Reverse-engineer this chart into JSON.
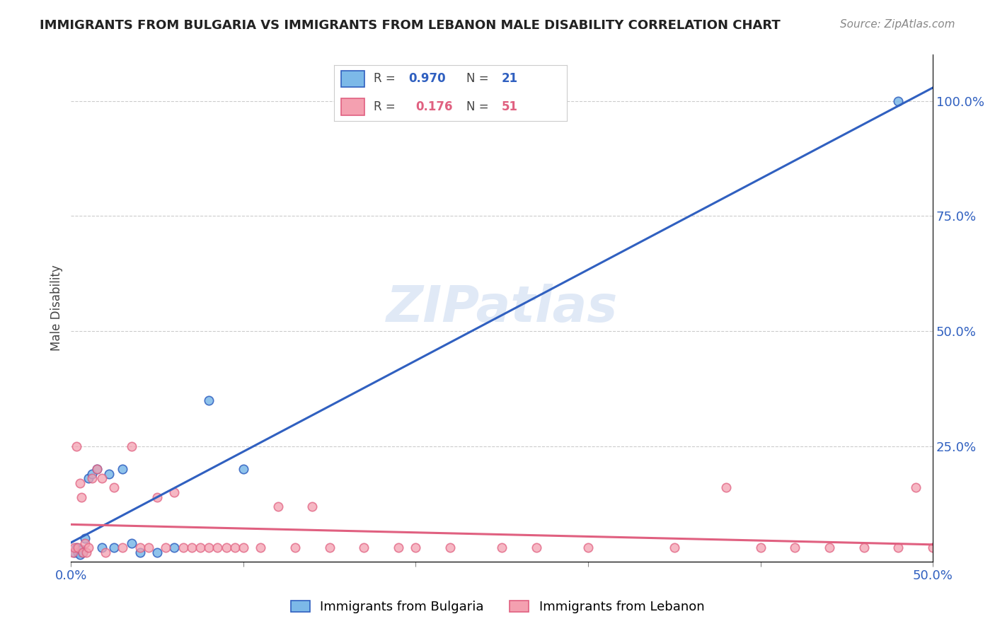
{
  "title": "IMMIGRANTS FROM BULGARIA VS IMMIGRANTS FROM LEBANON MALE DISABILITY CORRELATION CHART",
  "source": "Source: ZipAtlas.com",
  "ylabel": "Male Disability",
  "xlim": [
    0.0,
    0.5
  ],
  "ylim": [
    0.0,
    1.1
  ],
  "xtick_positions": [
    0.0,
    0.1,
    0.2,
    0.3,
    0.4,
    0.5
  ],
  "xticklabels": [
    "0.0%",
    "",
    "",
    "",
    "",
    "50.0%"
  ],
  "ytick_positions": [
    0.0,
    0.25,
    0.5,
    0.75,
    1.0
  ],
  "yticklabels_right": [
    "",
    "25.0%",
    "50.0%",
    "75.0%",
    "100.0%"
  ],
  "bulgaria_R": 0.97,
  "bulgaria_N": 21,
  "lebanon_R": 0.176,
  "lebanon_N": 51,
  "bulgaria_color": "#7cb9e8",
  "lebanon_color": "#f4a0b0",
  "bulgaria_line_color": "#3060c0",
  "lebanon_line_color": "#e06080",
  "watermark": "ZIPatlas",
  "bulgaria_x": [
    0.002,
    0.003,
    0.004,
    0.005,
    0.006,
    0.007,
    0.008,
    0.01,
    0.012,
    0.015,
    0.018,
    0.022,
    0.025,
    0.03,
    0.035,
    0.04,
    0.05,
    0.06,
    0.08,
    0.1,
    0.48
  ],
  "bulgaria_y": [
    0.02,
    0.03,
    0.02,
    0.015,
    0.025,
    0.02,
    0.05,
    0.18,
    0.19,
    0.2,
    0.03,
    0.19,
    0.03,
    0.2,
    0.04,
    0.02,
    0.02,
    0.03,
    0.35,
    0.2,
    1.0
  ],
  "lebanon_x": [
    0.001,
    0.002,
    0.003,
    0.004,
    0.005,
    0.006,
    0.007,
    0.008,
    0.009,
    0.01,
    0.012,
    0.015,
    0.018,
    0.02,
    0.025,
    0.03,
    0.035,
    0.04,
    0.045,
    0.05,
    0.055,
    0.06,
    0.065,
    0.07,
    0.075,
    0.08,
    0.085,
    0.09,
    0.095,
    0.1,
    0.11,
    0.12,
    0.13,
    0.14,
    0.15,
    0.17,
    0.19,
    0.2,
    0.22,
    0.25,
    0.27,
    0.3,
    0.35,
    0.4,
    0.42,
    0.44,
    0.46,
    0.48,
    0.49,
    0.5,
    0.38
  ],
  "lebanon_y": [
    0.02,
    0.03,
    0.25,
    0.03,
    0.17,
    0.14,
    0.02,
    0.04,
    0.02,
    0.03,
    0.18,
    0.2,
    0.18,
    0.02,
    0.16,
    0.03,
    0.25,
    0.03,
    0.03,
    0.14,
    0.03,
    0.15,
    0.03,
    0.03,
    0.03,
    0.03,
    0.03,
    0.03,
    0.03,
    0.03,
    0.03,
    0.12,
    0.03,
    0.12,
    0.03,
    0.03,
    0.03,
    0.03,
    0.03,
    0.03,
    0.03,
    0.03,
    0.03,
    0.03,
    0.03,
    0.03,
    0.03,
    0.03,
    0.16,
    0.03,
    0.16
  ]
}
